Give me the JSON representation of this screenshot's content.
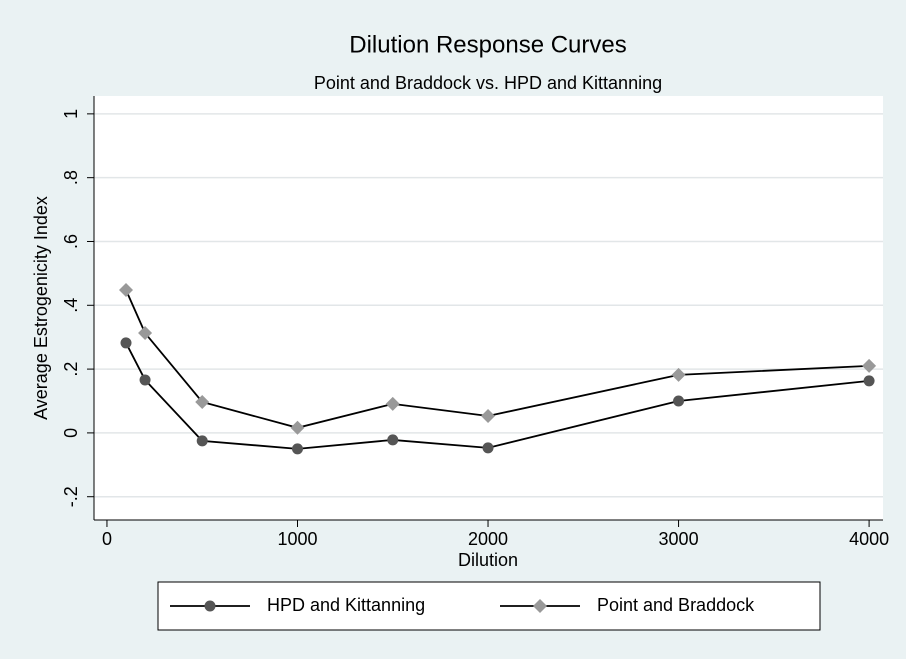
{
  "chart_data": {
    "type": "line",
    "title": "Dilution Response Curves",
    "subtitle": "Point and Braddock vs. HPD and Kittanning",
    "x_label": "Dilution",
    "y_label": "Average Estrogenicity Index",
    "x": [
      100,
      200,
      500,
      1000,
      1500,
      2000,
      3000,
      4000
    ],
    "series": [
      {
        "name": "HPD and Kittanning",
        "color": "#555555",
        "marker": "circle",
        "values": [
          0.282,
          0.166,
          -0.025,
          -0.05,
          -0.022,
          -0.047,
          0.1,
          0.163
        ]
      },
      {
        "name": "Point and Braddock",
        "color": "#999999",
        "marker": "diamond",
        "values": [
          0.448,
          0.313,
          0.097,
          0.016,
          0.091,
          0.053,
          0.182,
          0.21
        ]
      }
    ],
    "xlim": [
      -68,
      4073
    ],
    "ylim": [
      -0.273,
      1.056
    ],
    "xticks": [
      0,
      1000,
      2000,
      3000,
      4000
    ],
    "yticks": [
      {
        "value": -0.2,
        "label": "-.2"
      },
      0,
      {
        "value": 0.2,
        "label": ".2"
      },
      {
        "value": 0.4,
        "label": ".4"
      },
      {
        "value": 0.6,
        "label": ".6"
      },
      {
        "value": 0.8,
        "label": ".8"
      },
      1
    ],
    "grid": true,
    "legend": "bottom"
  }
}
